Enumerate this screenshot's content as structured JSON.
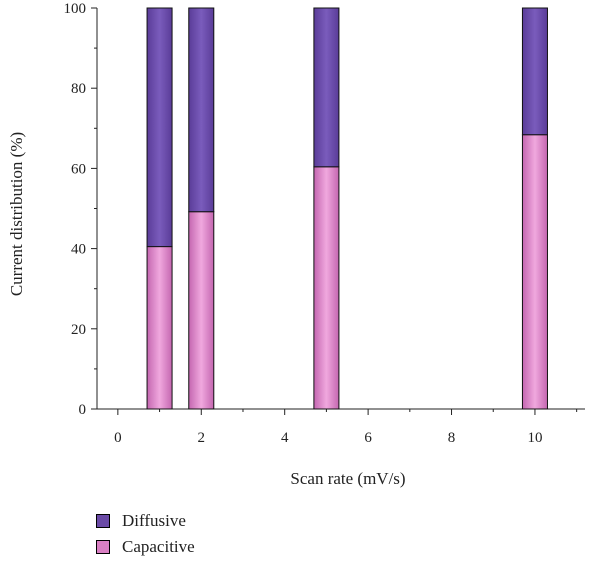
{
  "chart_data": {
    "type": "bar",
    "stacked": true,
    "x": [
      1,
      2,
      5,
      10
    ],
    "series": [
      {
        "name": "Capacitive",
        "values": [
          40.5,
          49.2,
          60.4,
          68.4
        ],
        "color": "#d97fc3"
      },
      {
        "name": "Diffusive",
        "values": [
          59.5,
          50.8,
          39.6,
          31.6
        ],
        "color": "#6a4aa6"
      }
    ],
    "xlabel": "Scan rate (mV/s)",
    "ylabel": "Current distribution (%)",
    "xlim": [
      -0.5,
      11.2
    ],
    "ylim": [
      0,
      100
    ],
    "xticks": [
      0,
      2,
      4,
      6,
      8,
      10
    ],
    "yticks": [
      0,
      20,
      40,
      60,
      80,
      100
    ],
    "grid": false,
    "legend_position": "bottom-left"
  }
}
